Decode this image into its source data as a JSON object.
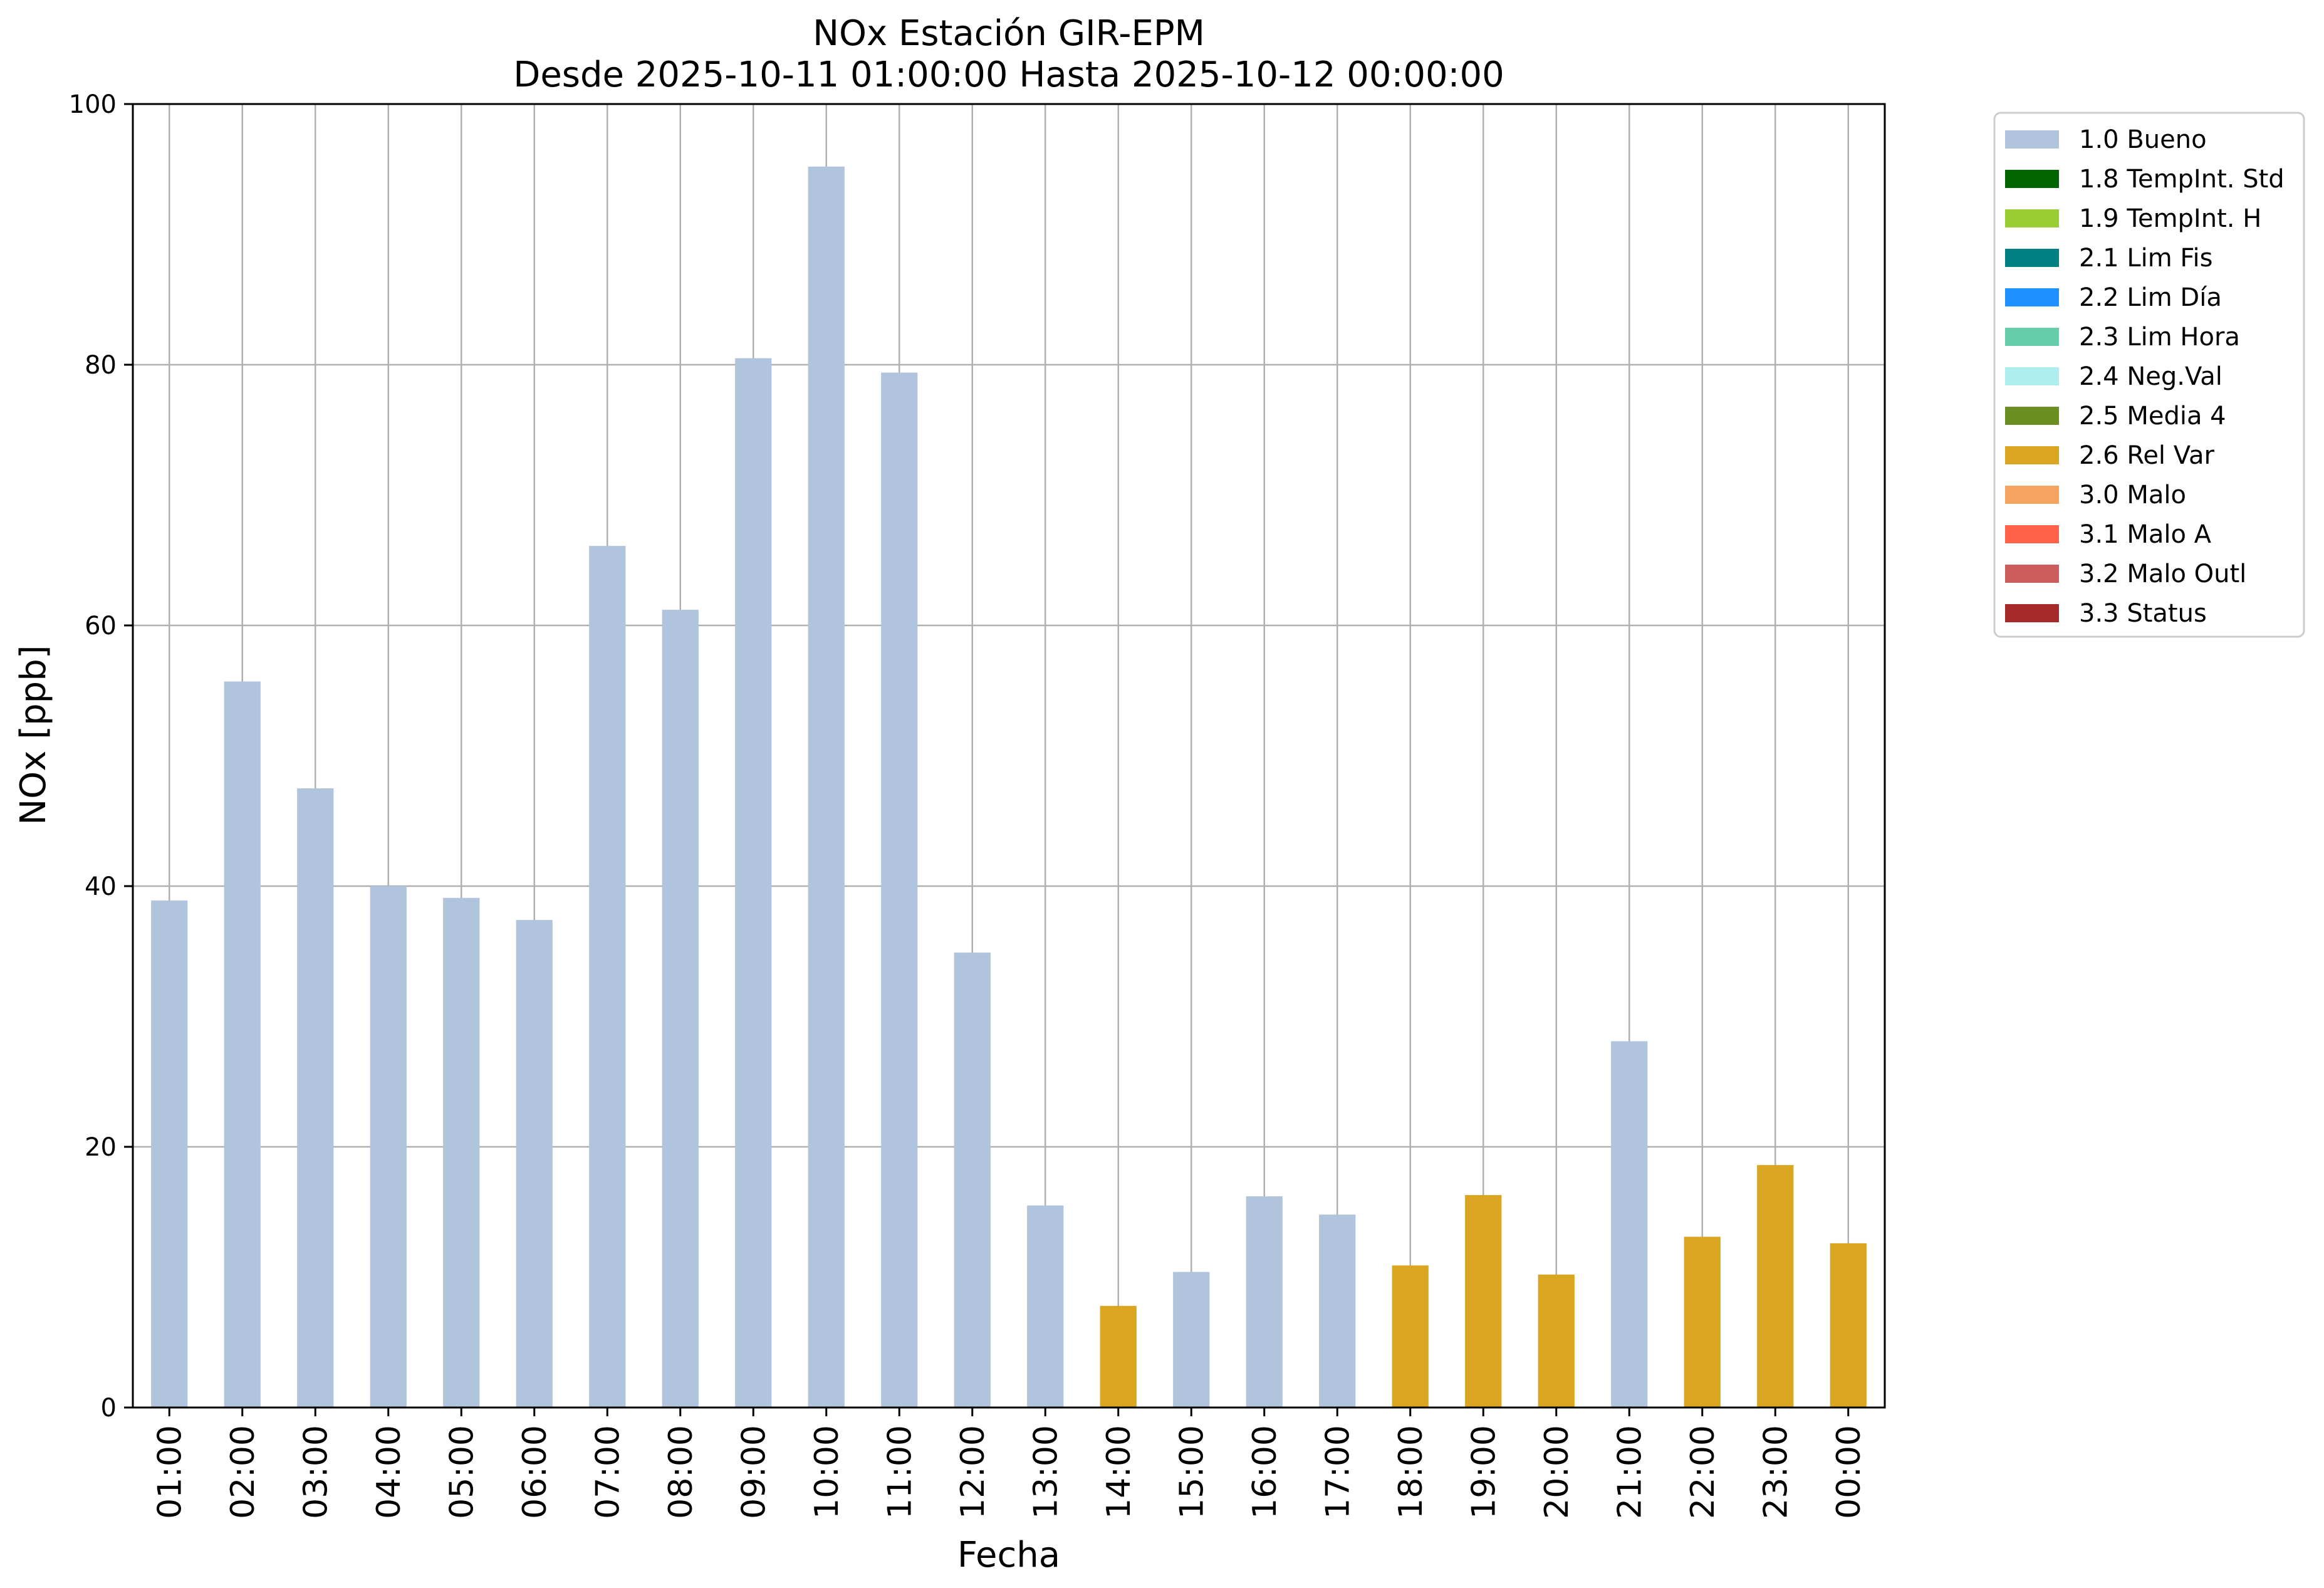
{
  "chart_data": {
    "type": "bar",
    "title": "NOx Estación GIR-EPM",
    "subtitle": "Desde 2025-10-11 01:00:00 Hasta 2025-10-12 00:00:00",
    "xlabel": "Fecha",
    "ylabel": "NOx [ppb]",
    "ylim": [
      0,
      100
    ],
    "yticks": [
      "0",
      "20",
      "40",
      "60",
      "80",
      "100"
    ],
    "grid": true,
    "legend_position": "outside-right-top",
    "categories": [
      "01:00",
      "02:00",
      "03:00",
      "04:00",
      "05:00",
      "06:00",
      "07:00",
      "08:00",
      "09:00",
      "10:00",
      "11:00",
      "12:00",
      "13:00",
      "14:00",
      "15:00",
      "16:00",
      "17:00",
      "18:00",
      "19:00",
      "20:00",
      "21:00",
      "22:00",
      "23:00",
      "00:00"
    ],
    "values": [
      38.9,
      55.7,
      47.5,
      40.0,
      39.1,
      37.4,
      66.1,
      61.2,
      80.5,
      95.2,
      79.4,
      34.9,
      15.5,
      7.8,
      10.4,
      16.2,
      14.8,
      10.9,
      16.3,
      10.2,
      28.1,
      13.1,
      18.6,
      12.6
    ],
    "flags": [
      "1.0 Bueno",
      "1.0 Bueno",
      "1.0 Bueno",
      "1.0 Bueno",
      "1.0 Bueno",
      "1.0 Bueno",
      "1.0 Bueno",
      "1.0 Bueno",
      "1.0 Bueno",
      "1.0 Bueno",
      "1.0 Bueno",
      "1.0 Bueno",
      "1.0 Bueno",
      "2.6 Rel Var",
      "1.0 Bueno",
      "1.0 Bueno",
      "1.0 Bueno",
      "2.6 Rel Var",
      "2.6 Rel Var",
      "2.6 Rel Var",
      "1.0 Bueno",
      "2.6 Rel Var",
      "2.6 Rel Var",
      "2.6 Rel Var"
    ],
    "legend": [
      {
        "label": "1.0 Bueno",
        "color": "#b0c4de"
      },
      {
        "label": "1.8 TempInt. Std",
        "color": "#006400"
      },
      {
        "label": "1.9 TempInt. H",
        "color": "#9acd32"
      },
      {
        "label": "2.1 Lim Fis",
        "color": "#008080"
      },
      {
        "label": "2.2 Lim Día",
        "color": "#1e90ff"
      },
      {
        "label": "2.3 Lim Hora",
        "color": "#66cdaa"
      },
      {
        "label": "2.4 Neg.Val",
        "color": "#afeeee"
      },
      {
        "label": "2.5 Media 4",
        "color": "#6b8e23"
      },
      {
        "label": "2.6 Rel Var",
        "color": "#daa520"
      },
      {
        "label": "3.0 Malo",
        "color": "#f4a460"
      },
      {
        "label": "3.1 Malo A",
        "color": "#ff6347"
      },
      {
        "label": "3.2 Malo Outl",
        "color": "#cd5c5c"
      },
      {
        "label": "3.3 Status",
        "color": "#a52a2a"
      }
    ]
  }
}
